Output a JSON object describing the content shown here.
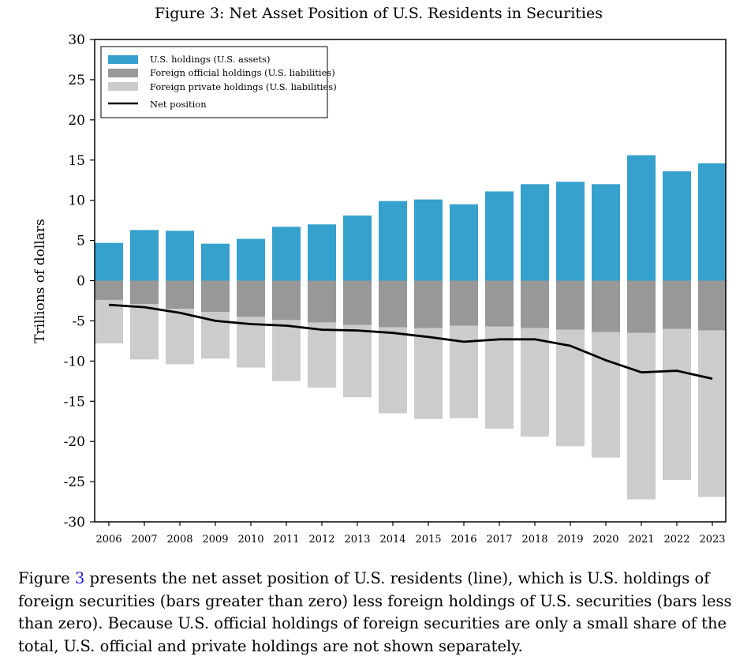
{
  "figure": {
    "title": "Figure 3: Net Asset Position of U.S. Residents in Securities"
  },
  "caption": {
    "prefix": "Figure ",
    "ref": "3",
    "text": " presents the net asset position of U.S. residents (line), which is U.S. holdings of foreign securities (bars greater than zero) less foreign holdings of U.S. securities (bars less than zero). Because U.S. official holdings of foreign securities are only a small share of the total, U.S. official and private holdings are not shown separately."
  },
  "colors": {
    "us_holdings": "#35a1cc",
    "foreign_official": "#989898",
    "foreign_private": "#cccccc",
    "net_line": "#000000"
  },
  "chart_data": {
    "type": "bar",
    "title": "Figure 3: Net Asset Position of U.S. Residents in Securities",
    "ylabel": "Trillions of dollars",
    "xlabel": "",
    "ylim": [
      -30,
      30
    ],
    "yticks": [
      30,
      25,
      20,
      15,
      10,
      5,
      0,
      -5,
      -10,
      -15,
      -20,
      -25,
      -30
    ],
    "legend_position": "top-left",
    "grid": false,
    "categories": [
      "2006",
      "2007",
      "2008",
      "2009",
      "2010",
      "2011",
      "2012",
      "2013",
      "2014",
      "2015",
      "2016",
      "2017",
      "2018",
      "2019",
      "2020",
      "2021",
      "2022",
      "2023"
    ],
    "series": [
      {
        "name": "U.S. holdings (U.S. assets)",
        "type": "bar",
        "values": [
          4.7,
          6.3,
          6.2,
          4.6,
          5.2,
          6.7,
          7.0,
          8.1,
          9.9,
          10.1,
          9.5,
          11.1,
          12.0,
          12.3,
          12.0,
          15.6,
          13.6,
          14.6
        ]
      },
      {
        "name": "Foreign official holdings (U.S. liabilities)",
        "type": "bar",
        "values": [
          -2.4,
          -2.9,
          -3.5,
          -3.9,
          -4.5,
          -4.9,
          -5.2,
          -5.5,
          -5.8,
          -5.9,
          -5.6,
          -5.7,
          -5.9,
          -6.1,
          -6.4,
          -6.5,
          -6.0,
          -6.2
        ]
      },
      {
        "name": "Foreign private holdings (U.S. liabilities)",
        "type": "bar",
        "values": [
          -5.4,
          -6.9,
          -6.9,
          -5.8,
          -6.3,
          -7.6,
          -8.1,
          -9.0,
          -10.7,
          -11.3,
          -11.5,
          -12.7,
          -13.5,
          -14.5,
          -15.6,
          -20.7,
          -18.8,
          -20.7
        ]
      },
      {
        "name": "Net position",
        "type": "line",
        "values": [
          -3.0,
          -3.3,
          -4.0,
          -5.0,
          -5.4,
          -5.6,
          -6.1,
          -6.2,
          -6.5,
          -7.0,
          -7.6,
          -7.3,
          -7.3,
          -8.1,
          -9.9,
          -11.4,
          -11.2,
          -12.2
        ]
      }
    ]
  }
}
